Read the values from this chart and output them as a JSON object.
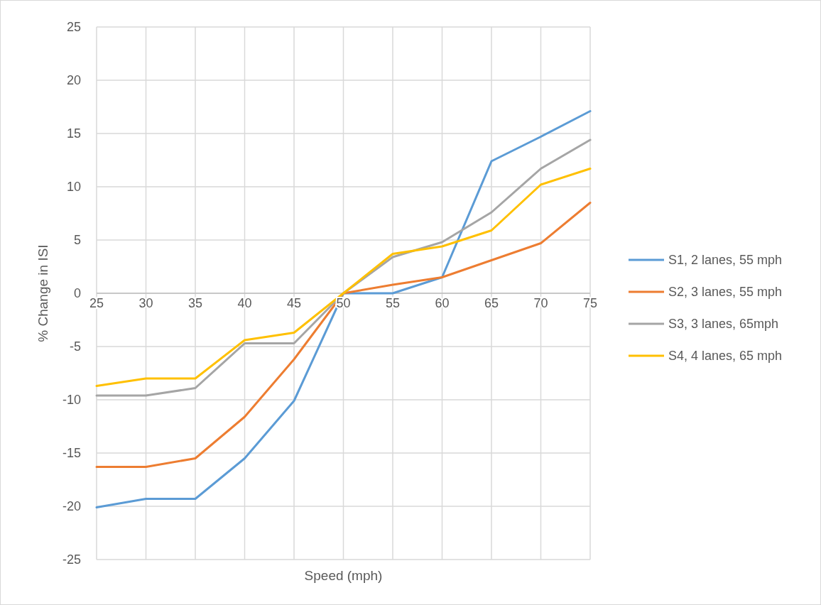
{
  "chart_data": {
    "type": "line",
    "xlabel": "Speed (mph)",
    "ylabel": "% Change in ISI",
    "x": [
      25,
      30,
      35,
      40,
      45,
      50,
      55,
      60,
      65,
      70,
      75
    ],
    "xlim": [
      25,
      75
    ],
    "xticks": [
      25,
      30,
      35,
      40,
      45,
      50,
      55,
      60,
      65,
      70,
      75
    ],
    "ylim": [
      -25,
      25
    ],
    "yticks": [
      -25,
      -20,
      -15,
      -10,
      -5,
      0,
      5,
      10,
      15,
      20,
      25
    ],
    "grid": true,
    "legend": "right",
    "marker": "none",
    "line_style": "solid",
    "series": [
      {
        "name": "S1, 2 lanes, 55 mph",
        "color": "#5b9bd5",
        "values": [
          -20.1,
          -19.3,
          -19.3,
          -15.5,
          -10.1,
          0,
          0,
          1.5,
          12.4,
          14.7,
          17.1
        ]
      },
      {
        "name": "S2, 3 lanes, 55 mph",
        "color": "#ed7d31",
        "values": [
          -16.3,
          -16.3,
          -15.5,
          -11.6,
          -6.2,
          0,
          0.8,
          1.5,
          3.1,
          4.7,
          8.5
        ]
      },
      {
        "name": "S3, 3 lanes, 65mph",
        "color": "#a5a5a5",
        "values": [
          -9.6,
          -9.6,
          -8.9,
          -4.7,
          -4.7,
          0,
          3.4,
          4.8,
          7.6,
          11.7,
          14.4
        ]
      },
      {
        "name": "S4, 4 lanes, 65 mph",
        "color": "#ffc000",
        "values": [
          -8.7,
          -8.0,
          -8.0,
          -4.4,
          -3.7,
          0,
          3.7,
          4.4,
          5.9,
          10.2,
          11.7
        ]
      }
    ]
  }
}
